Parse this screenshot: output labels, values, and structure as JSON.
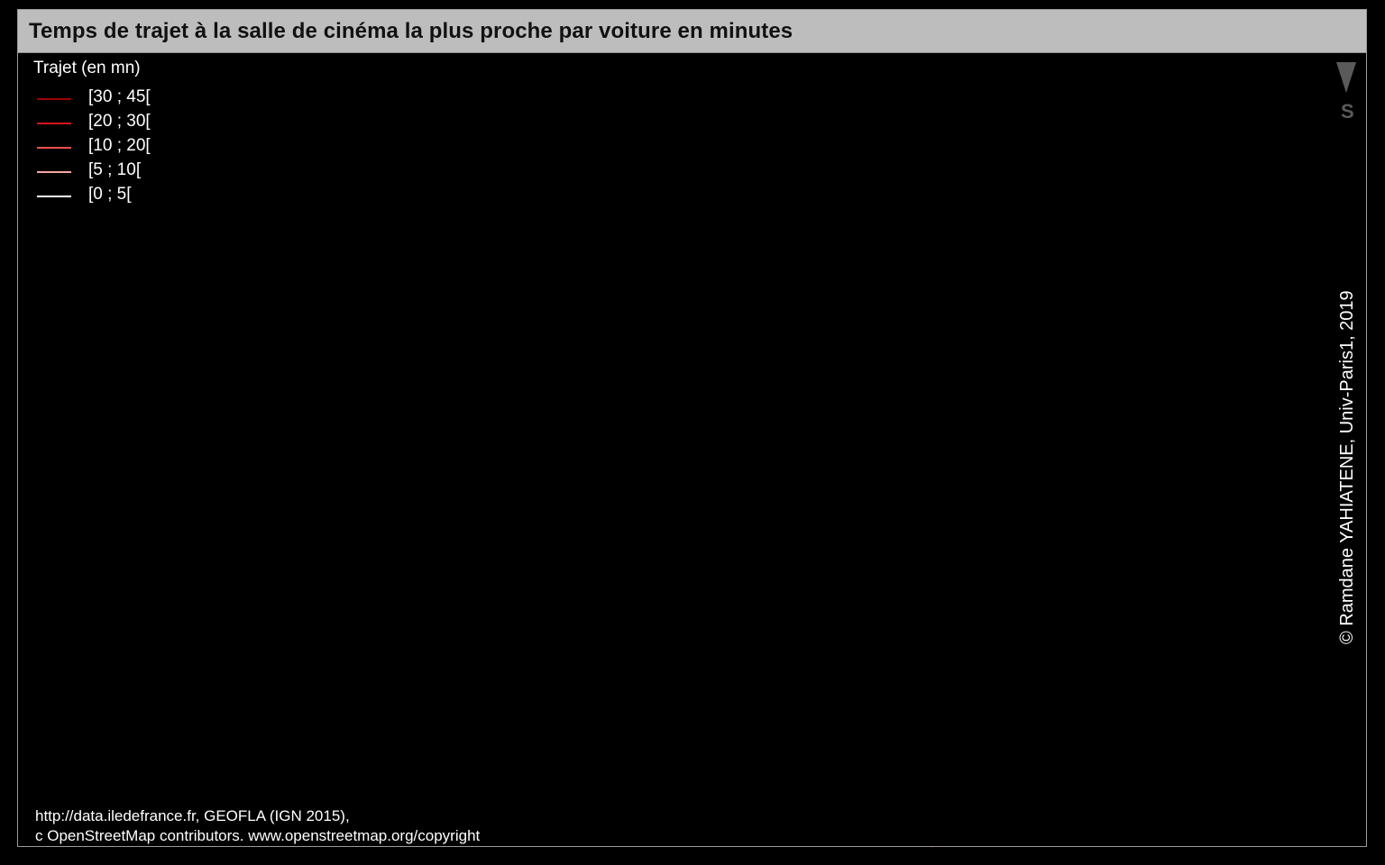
{
  "title": "Temps de trajet à la salle de cinéma la plus proche par voiture en minutes",
  "legend": {
    "title": "Trajet (en mn)",
    "classes": [
      {
        "label": "[30 ; 45[",
        "color": "#a00000"
      },
      {
        "label": "[20 ; 30[",
        "color": "#d8141a"
      },
      {
        "label": "[10 ; 20[",
        "color": "#f0504a"
      },
      {
        "label": "[5 ; 10[",
        "color": "#f8a8a0"
      },
      {
        "label": "[0 ; 5[",
        "color": "#ffffff"
      }
    ]
  },
  "north_arrow": {
    "label": "S",
    "icon": "north-arrow-icon"
  },
  "credit": "© Ramdane YAHIATENE, Univ-Paris1, 2019",
  "source": {
    "line1": "http://data.iledefrance.fr, GEOFLA (IGN 2015),",
    "line2": "c OpenStreetMap contributors. www.openstreetmap.org/copyright"
  }
}
